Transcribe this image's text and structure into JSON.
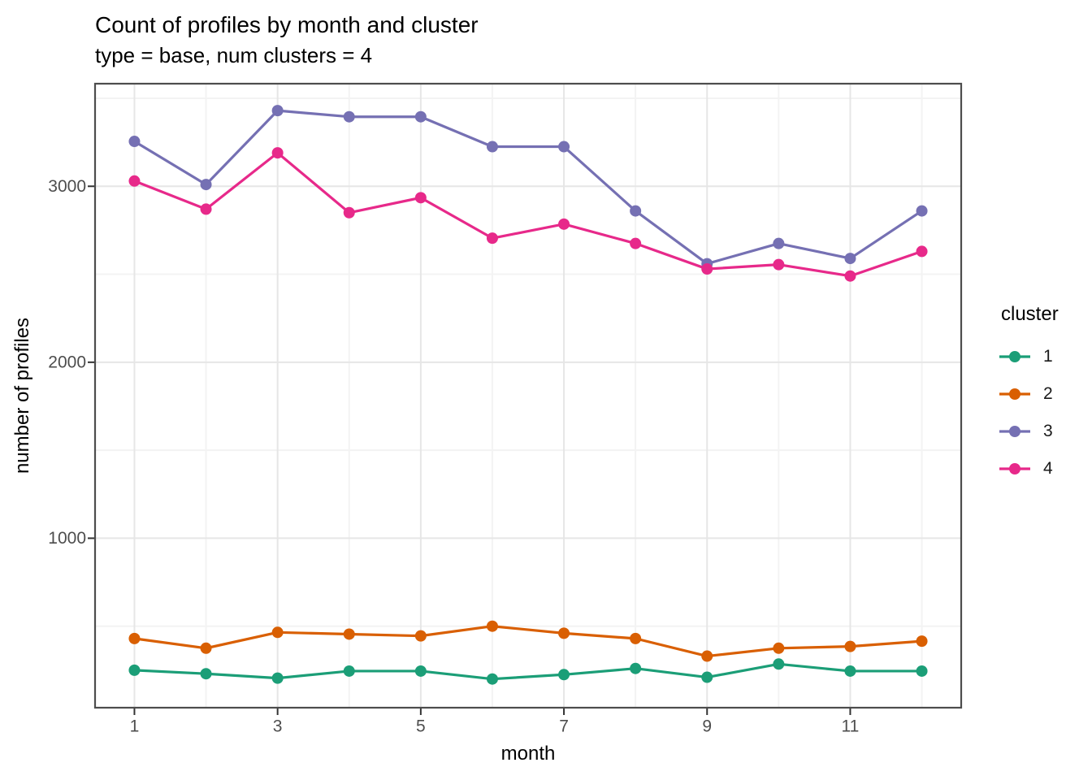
{
  "legend": {
    "title": "cluster",
    "items": [
      {
        "label": "1",
        "color": "#1B9E77"
      },
      {
        "label": "2",
        "color": "#D95F02"
      },
      {
        "label": "3",
        "color": "#7570B3"
      },
      {
        "label": "4",
        "color": "#E7298A"
      }
    ]
  },
  "chart_data": {
    "type": "line",
    "title": "Count of profiles by month and cluster",
    "subtitle": "type = base, num clusters = 4",
    "xlabel": "month",
    "ylabel": "number of profiles",
    "x": [
      1,
      2,
      3,
      4,
      5,
      6,
      7,
      8,
      9,
      10,
      11,
      12
    ],
    "series": [
      {
        "name": "1",
        "color": "#1B9E77",
        "values": [
          250,
          230,
          205,
          245,
          245,
          200,
          225,
          260,
          210,
          285,
          245,
          245
        ]
      },
      {
        "name": "2",
        "color": "#D95F02",
        "values": [
          430,
          375,
          465,
          455,
          445,
          500,
          460,
          430,
          330,
          375,
          385,
          415
        ]
      },
      {
        "name": "3",
        "color": "#7570B3",
        "values": [
          3255,
          3010,
          3430,
          3395,
          3395,
          3225,
          3225,
          2860,
          2560,
          2675,
          2590,
          2860
        ]
      },
      {
        "name": "4",
        "color": "#E7298A",
        "values": [
          3030,
          2870,
          3190,
          2850,
          2935,
          2705,
          2785,
          2675,
          2530,
          2555,
          2490,
          2630
        ]
      }
    ],
    "x_ticks": [
      1,
      3,
      5,
      7,
      9,
      11
    ],
    "y_ticks": [
      1000,
      2000,
      3000
    ],
    "x_minor_ticks": [
      2,
      4,
      6,
      8,
      10,
      12
    ],
    "y_minor_ticks": [
      500,
      1500,
      2500,
      3500
    ],
    "xlim": [
      0.45,
      12.55
    ],
    "ylim": [
      37,
      3583
    ],
    "grid": true,
    "legend_position": "right"
  },
  "style": {
    "background": "#ffffff",
    "panel_border": "#4d4d4d",
    "grid_major": "#e6e6e6",
    "grid_minor": "#f3f3f3",
    "tick_color": "#333333",
    "tick_label_color": "#4d4d4d",
    "text_color": "#000000"
  }
}
